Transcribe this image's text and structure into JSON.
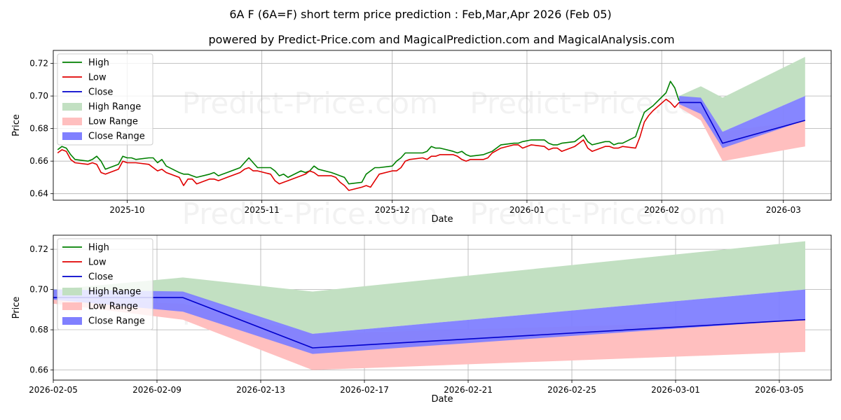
{
  "suptitle": "6A F (6A=F) short term price prediction : Feb,Mar,Apr 2026 (Feb 05)",
  "subtitle": "powered by Predict-Price.com and MagicalPrediction.com and MagicalAnalysis.com",
  "watermark": "Predict-Price.com",
  "colors": {
    "high": "#008000",
    "low": "#e00000",
    "close": "#0000cc",
    "high_range": "#c2e0c2",
    "low_range": "#ffbfbf",
    "close_range": "#8080ff",
    "grid": "#b0b0b0",
    "axis": "#000000"
  },
  "chart_data": [
    {
      "type": "line",
      "title": "",
      "xlabel": "Date",
      "ylabel": "Price",
      "xlim": [
        "2025-09-14",
        "2026-03-12"
      ],
      "ylim": [
        0.636,
        0.728
      ],
      "xticks": [
        "2025-10",
        "2025-11",
        "2025-12",
        "2026-01",
        "2026-02",
        "2026-03"
      ],
      "xtick_dates": [
        "2025-10-01",
        "2025-11-01",
        "2025-12-01",
        "2026-01-01",
        "2026-02-01",
        "2026-03-01"
      ],
      "yticks": [
        "0.64",
        "0.66",
        "0.68",
        "0.70",
        "0.72"
      ],
      "ytick_values": [
        0.64,
        0.66,
        0.68,
        0.7,
        0.72
      ],
      "grid": true,
      "legend": "top-left",
      "legend_labels": [
        "High",
        "Low",
        "Close",
        "High Range",
        "Low Range",
        "Close Range"
      ],
      "series": [
        {
          "name": "High",
          "x": [
            "2025-09-15",
            "2025-09-16",
            "2025-09-17",
            "2025-09-18",
            "2025-09-19",
            "2025-09-22",
            "2025-09-23",
            "2025-09-24",
            "2025-09-25",
            "2025-09-26",
            "2025-09-29",
            "2025-09-30",
            "2025-10-01",
            "2025-10-02",
            "2025-10-03",
            "2025-10-06",
            "2025-10-07",
            "2025-10-08",
            "2025-10-09",
            "2025-10-10",
            "2025-10-13",
            "2025-10-14",
            "2025-10-15",
            "2025-10-16",
            "2025-10-17",
            "2025-10-20",
            "2025-10-21",
            "2025-10-22",
            "2025-10-23",
            "2025-10-24",
            "2025-10-27",
            "2025-10-28",
            "2025-10-29",
            "2025-10-30",
            "2025-10-31",
            "2025-11-03",
            "2025-11-04",
            "2025-11-05",
            "2025-11-06",
            "2025-11-07",
            "2025-11-10",
            "2025-11-11",
            "2025-11-12",
            "2025-11-13",
            "2025-11-14",
            "2025-11-17",
            "2025-11-18",
            "2025-11-19",
            "2025-11-20",
            "2025-11-21",
            "2025-11-24",
            "2025-11-25",
            "2025-11-26",
            "2025-11-27",
            "2025-11-28",
            "2025-12-01",
            "2025-12-02",
            "2025-12-03",
            "2025-12-04",
            "2025-12-05",
            "2025-12-08",
            "2025-12-09",
            "2025-12-10",
            "2025-12-11",
            "2025-12-12",
            "2025-12-15",
            "2025-12-16",
            "2025-12-17",
            "2025-12-18",
            "2025-12-19",
            "2025-12-22",
            "2025-12-23",
            "2025-12-24",
            "2025-12-26",
            "2025-12-29",
            "2025-12-30",
            "2025-12-31",
            "2026-01-02",
            "2026-01-05",
            "2026-01-06",
            "2026-01-07",
            "2026-01-08",
            "2026-01-09",
            "2026-01-12",
            "2026-01-13",
            "2026-01-14",
            "2026-01-15",
            "2026-01-16",
            "2026-01-19",
            "2026-01-20",
            "2026-01-21",
            "2026-01-22",
            "2026-01-23",
            "2026-01-26",
            "2026-01-27",
            "2026-01-28",
            "2026-01-29",
            "2026-01-30",
            "2026-02-02",
            "2026-02-03",
            "2026-02-04",
            "2026-02-05"
          ],
          "y": [
            0.667,
            0.669,
            0.668,
            0.664,
            0.661,
            0.66,
            0.661,
            0.663,
            0.66,
            0.655,
            0.658,
            0.663,
            0.662,
            0.662,
            0.661,
            0.662,
            0.662,
            0.659,
            0.661,
            0.657,
            0.653,
            0.652,
            0.652,
            0.651,
            0.65,
            0.652,
            0.653,
            0.651,
            0.652,
            0.653,
            0.656,
            0.659,
            0.662,
            0.659,
            0.656,
            0.656,
            0.654,
            0.651,
            0.652,
            0.65,
            0.654,
            0.653,
            0.654,
            0.657,
            0.655,
            0.653,
            0.652,
            0.651,
            0.65,
            0.646,
            0.647,
            0.652,
            0.654,
            0.656,
            0.656,
            0.657,
            0.66,
            0.662,
            0.665,
            0.665,
            0.665,
            0.666,
            0.669,
            0.668,
            0.668,
            0.666,
            0.665,
            0.666,
            0.664,
            0.663,
            0.664,
            0.665,
            0.666,
            0.67,
            0.671,
            0.671,
            0.672,
            0.673,
            0.673,
            0.671,
            0.67,
            0.67,
            0.671,
            0.672,
            0.674,
            0.676,
            0.672,
            0.67,
            0.672,
            0.672,
            0.67,
            0.671,
            0.671,
            0.675,
            0.683,
            0.69,
            0.692,
            0.694,
            0.702,
            0.709,
            0.705,
            0.697
          ]
        },
        {
          "name": "Low",
          "x": [
            "2025-09-15",
            "2025-09-16",
            "2025-09-17",
            "2025-09-18",
            "2025-09-19",
            "2025-09-22",
            "2025-09-23",
            "2025-09-24",
            "2025-09-25",
            "2025-09-26",
            "2025-09-29",
            "2025-09-30",
            "2025-10-01",
            "2025-10-02",
            "2025-10-03",
            "2025-10-06",
            "2025-10-07",
            "2025-10-08",
            "2025-10-09",
            "2025-10-10",
            "2025-10-13",
            "2025-10-14",
            "2025-10-15",
            "2025-10-16",
            "2025-10-17",
            "2025-10-20",
            "2025-10-21",
            "2025-10-22",
            "2025-10-23",
            "2025-10-24",
            "2025-10-27",
            "2025-10-28",
            "2025-10-29",
            "2025-10-30",
            "2025-10-31",
            "2025-11-03",
            "2025-11-04",
            "2025-11-05",
            "2025-11-06",
            "2025-11-07",
            "2025-11-10",
            "2025-11-11",
            "2025-11-12",
            "2025-11-13",
            "2025-11-14",
            "2025-11-17",
            "2025-11-18",
            "2025-11-19",
            "2025-11-20",
            "2025-11-21",
            "2025-11-24",
            "2025-11-25",
            "2025-11-26",
            "2025-11-27",
            "2025-11-28",
            "2025-12-01",
            "2025-12-02",
            "2025-12-03",
            "2025-12-04",
            "2025-12-05",
            "2025-12-08",
            "2025-12-09",
            "2025-12-10",
            "2025-12-11",
            "2025-12-12",
            "2025-12-15",
            "2025-12-16",
            "2025-12-17",
            "2025-12-18",
            "2025-12-19",
            "2025-12-22",
            "2025-12-23",
            "2025-12-24",
            "2025-12-26",
            "2025-12-29",
            "2025-12-30",
            "2025-12-31",
            "2026-01-02",
            "2026-01-05",
            "2026-01-06",
            "2026-01-07",
            "2026-01-08",
            "2026-01-09",
            "2026-01-12",
            "2026-01-13",
            "2026-01-14",
            "2026-01-15",
            "2026-01-16",
            "2026-01-19",
            "2026-01-20",
            "2026-01-21",
            "2026-01-22",
            "2026-01-23",
            "2026-01-26",
            "2026-01-27",
            "2026-01-28",
            "2026-01-29",
            "2026-01-30",
            "2026-02-02",
            "2026-02-03",
            "2026-02-04",
            "2026-02-05"
          ],
          "y": [
            0.665,
            0.667,
            0.666,
            0.661,
            0.659,
            0.658,
            0.659,
            0.658,
            0.653,
            0.652,
            0.655,
            0.66,
            0.659,
            0.659,
            0.659,
            0.658,
            0.656,
            0.654,
            0.655,
            0.653,
            0.65,
            0.645,
            0.649,
            0.649,
            0.646,
            0.649,
            0.649,
            0.648,
            0.649,
            0.65,
            0.653,
            0.655,
            0.656,
            0.654,
            0.654,
            0.652,
            0.648,
            0.646,
            0.647,
            0.648,
            0.651,
            0.652,
            0.654,
            0.653,
            0.651,
            0.651,
            0.65,
            0.647,
            0.645,
            0.642,
            0.644,
            0.645,
            0.644,
            0.648,
            0.652,
            0.654,
            0.654,
            0.656,
            0.66,
            0.661,
            0.662,
            0.661,
            0.663,
            0.663,
            0.664,
            0.664,
            0.663,
            0.661,
            0.66,
            0.661,
            0.661,
            0.662,
            0.665,
            0.668,
            0.67,
            0.67,
            0.668,
            0.67,
            0.669,
            0.667,
            0.668,
            0.668,
            0.666,
            0.669,
            0.671,
            0.673,
            0.668,
            0.666,
            0.669,
            0.669,
            0.668,
            0.668,
            0.669,
            0.668,
            0.675,
            0.684,
            0.688,
            0.691,
            0.698,
            0.696,
            0.693,
            0.696
          ]
        },
        {
          "name": "Close",
          "x": [
            "2026-02-05",
            "2026-02-10",
            "2026-02-15",
            "2026-03-06"
          ],
          "y": [
            0.696,
            0.696,
            0.671,
            0.685
          ]
        },
        {
          "name": "High Range",
          "x": [
            "2026-02-05",
            "2026-02-10",
            "2026-02-15",
            "2026-03-06"
          ],
          "upper": [
            0.7,
            0.706,
            0.699,
            0.724
          ],
          "lower": [
            0.695,
            0.698,
            0.678,
            0.7
          ]
        },
        {
          "name": "Low Range",
          "x": [
            "2026-02-05",
            "2026-02-10",
            "2026-02-15",
            "2026-03-06"
          ],
          "upper": [
            0.695,
            0.693,
            0.678,
            0.685
          ],
          "lower": [
            0.693,
            0.685,
            0.66,
            0.669
          ]
        },
        {
          "name": "Close Range",
          "x": [
            "2026-02-05",
            "2026-02-10",
            "2026-02-15",
            "2026-03-06"
          ],
          "upper": [
            0.7,
            0.699,
            0.678,
            0.7
          ],
          "lower": [
            0.695,
            0.689,
            0.668,
            0.685
          ]
        }
      ]
    },
    {
      "type": "line",
      "title": "",
      "xlabel": "Date",
      "ylabel": "Price",
      "xlim": [
        "2026-02-05",
        "2026-03-07"
      ],
      "ylim": [
        0.655,
        0.727
      ],
      "xticks": [
        "2026-02-05",
        "2026-02-09",
        "2026-02-13",
        "2026-02-17",
        "2026-02-21",
        "2026-02-25",
        "2026-03-01",
        "2026-03-05"
      ],
      "yticks": [
        "0.66",
        "0.68",
        "0.70",
        "0.72"
      ],
      "ytick_values": [
        0.66,
        0.68,
        0.7,
        0.72
      ],
      "grid": true,
      "legend": "top-left",
      "legend_labels": [
        "High",
        "Low",
        "Close",
        "High Range",
        "Low Range",
        "Close Range"
      ],
      "series": [
        {
          "name": "Close",
          "x": [
            "2026-02-05",
            "2026-02-10",
            "2026-02-15",
            "2026-03-06"
          ],
          "y": [
            0.696,
            0.696,
            0.671,
            0.685
          ]
        },
        {
          "name": "High Range",
          "x": [
            "2026-02-05",
            "2026-02-10",
            "2026-02-15",
            "2026-03-06"
          ],
          "upper": [
            0.7,
            0.706,
            0.699,
            0.724
          ],
          "lower": [
            0.695,
            0.698,
            0.678,
            0.7
          ]
        },
        {
          "name": "Low Range",
          "x": [
            "2026-02-05",
            "2026-02-10",
            "2026-02-15",
            "2026-03-06"
          ],
          "upper": [
            0.695,
            0.693,
            0.678,
            0.685
          ],
          "lower": [
            0.693,
            0.685,
            0.66,
            0.669
          ]
        },
        {
          "name": "Close Range",
          "x": [
            "2026-02-05",
            "2026-02-10",
            "2026-02-15",
            "2026-03-06"
          ],
          "upper": [
            0.7,
            0.699,
            0.678,
            0.7
          ],
          "lower": [
            0.695,
            0.689,
            0.668,
            0.685
          ]
        }
      ]
    }
  ]
}
